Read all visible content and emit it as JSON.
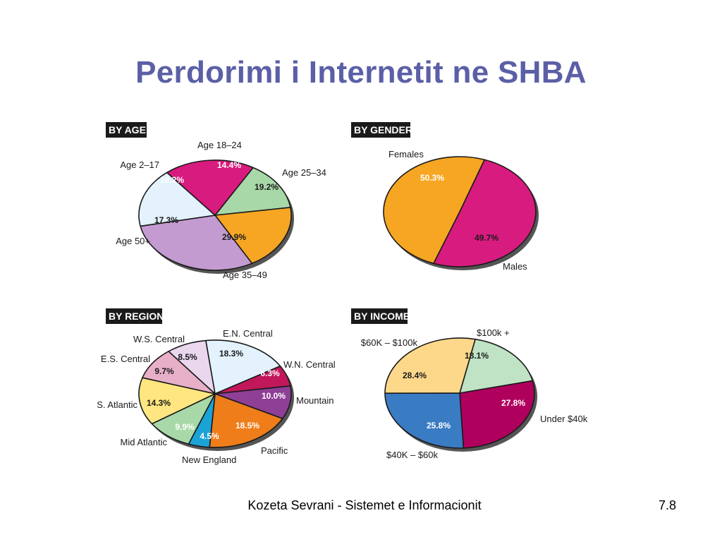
{
  "slide": {
    "title": "Perdorimi i Internetit ne SHBA",
    "footer": "Kozeta Sevrani - Sistemet e Informacionit",
    "page_number": "7.8"
  },
  "chart_data": [
    {
      "id": "age",
      "type": "pie",
      "header": "BY AGE",
      "slices": [
        {
          "label": "Age 18–24",
          "value": 14.4,
          "value_label": "14.4%",
          "color": "#a8d8a8",
          "text_color": "#ffffff"
        },
        {
          "label": "Age 25–34",
          "value": 19.2,
          "value_label": "19.2%",
          "color": "#f6a623",
          "text_color": "#1a1a1a"
        },
        {
          "label": "Age 35–49",
          "value": 29.9,
          "value_label": "29.9%",
          "color": "#c39bd0",
          "text_color": "#1a1a1a"
        },
        {
          "label": "Age 50+",
          "value": 17.3,
          "value_label": "17.3%",
          "color": "#e3f2fd",
          "text_color": "#1a1a1a"
        },
        {
          "label": "Age 2–17",
          "value": 19.2,
          "value_label": "19.2%",
          "color": "#d81b7e",
          "text_color": "#ffffff"
        }
      ]
    },
    {
      "id": "gender",
      "type": "pie",
      "header": "BY GENDER",
      "slices": [
        {
          "label": "Females",
          "value": 50.3,
          "value_label": "50.3%",
          "color": "#d81b7e",
          "text_color": "#ffffff"
        },
        {
          "label": "Males",
          "value": 49.7,
          "value_label": "49.7%",
          "color": "#f6a623",
          "text_color": "#1a1a1a"
        }
      ]
    },
    {
      "id": "region",
      "type": "pie",
      "header": "BY REGION",
      "slices": [
        {
          "label": "E.N. Central",
          "value": 18.3,
          "value_label": "18.3%",
          "color": "#e3f2fd",
          "text_color": "#1a1a1a"
        },
        {
          "label": "W.N. Central",
          "value": 6.3,
          "value_label": "6.3%",
          "color": "#c2185b",
          "text_color": "#ffffff"
        },
        {
          "label": "Mountain",
          "value": 10.0,
          "value_label": "10.0%",
          "color": "#8e3f96",
          "text_color": "#ffffff"
        },
        {
          "label": "Pacific",
          "value": 18.5,
          "value_label": "18.5%",
          "color": "#ef7d1a",
          "text_color": "#ffffff"
        },
        {
          "label": "New England",
          "value": 4.5,
          "value_label": "4.5%",
          "color": "#1ba3d8",
          "text_color": "#ffffff"
        },
        {
          "label": "Mid Atlantic",
          "value": 9.9,
          "value_label": "9.9%",
          "color": "#a8d8a8",
          "text_color": "#ffffff"
        },
        {
          "label": "S. Atlantic",
          "value": 14.3,
          "value_label": "14.3%",
          "color": "#ffe680",
          "text_color": "#1a1a1a"
        },
        {
          "label": "E.S. Central",
          "value": 9.7,
          "value_label": "9.7%",
          "color": "#e8b0c8",
          "text_color": "#1a1a1a"
        },
        {
          "label": "W.S. Central",
          "value": 8.5,
          "value_label": "8.5%",
          "color": "#ead7ee",
          "text_color": "#1a1a1a"
        }
      ]
    },
    {
      "id": "income",
      "type": "pie",
      "header": "BY INCOME",
      "slices": [
        {
          "label": "$100k +",
          "value": 18.1,
          "value_label": "18.1%",
          "color": "#bfe3c4",
          "text_color": "#1a1a1a"
        },
        {
          "label": "Under $40k",
          "value": 27.8,
          "value_label": "27.8%",
          "color": "#b0005e",
          "text_color": "#ffffff"
        },
        {
          "label": "$40K – $60k",
          "value": 25.8,
          "value_label": "25.8%",
          "color": "#3a7cc4",
          "text_color": "#ffffff"
        },
        {
          "label": "$60K – $100k",
          "value": 28.4,
          "value_label": "28.4%",
          "color": "#fdd88a",
          "text_color": "#1a1a1a"
        }
      ]
    }
  ]
}
